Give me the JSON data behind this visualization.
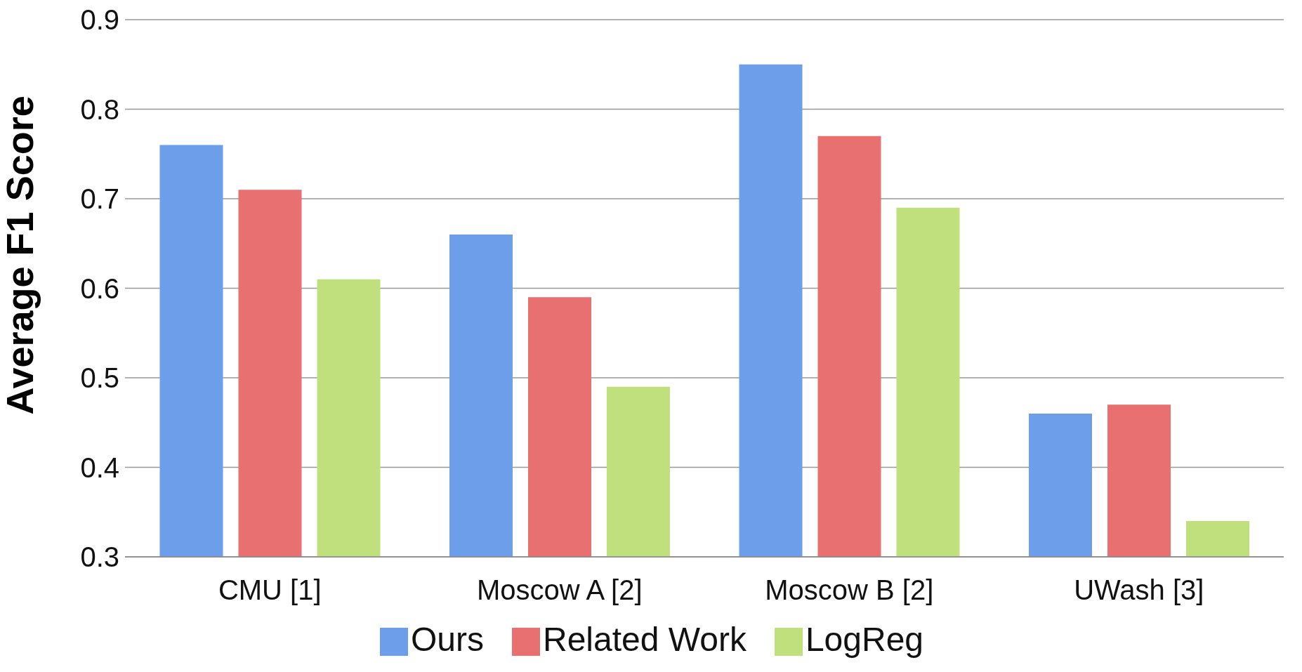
{
  "chart_data": {
    "type": "bar",
    "ylabel": "Average F1 Score",
    "categories": [
      "CMU [1]",
      "Moscow A [2]",
      "Moscow B [2]",
      "UWash [3]"
    ],
    "series": [
      {
        "name": "Ours",
        "color": "#6d9eea",
        "values": [
          0.76,
          0.66,
          0.85,
          0.46
        ]
      },
      {
        "name": "Related Work",
        "color": "#e87070",
        "values": [
          0.71,
          0.59,
          0.77,
          0.47
        ]
      },
      {
        "name": "LogReg",
        "color": "#bfe07c",
        "values": [
          0.61,
          0.49,
          0.69,
          0.34
        ]
      }
    ],
    "ylim": [
      0.3,
      0.9
    ],
    "yticks": [
      0.3,
      0.4,
      0.5,
      0.6,
      0.7,
      0.8,
      0.9
    ],
    "grid": "y",
    "legend": "bottom"
  }
}
